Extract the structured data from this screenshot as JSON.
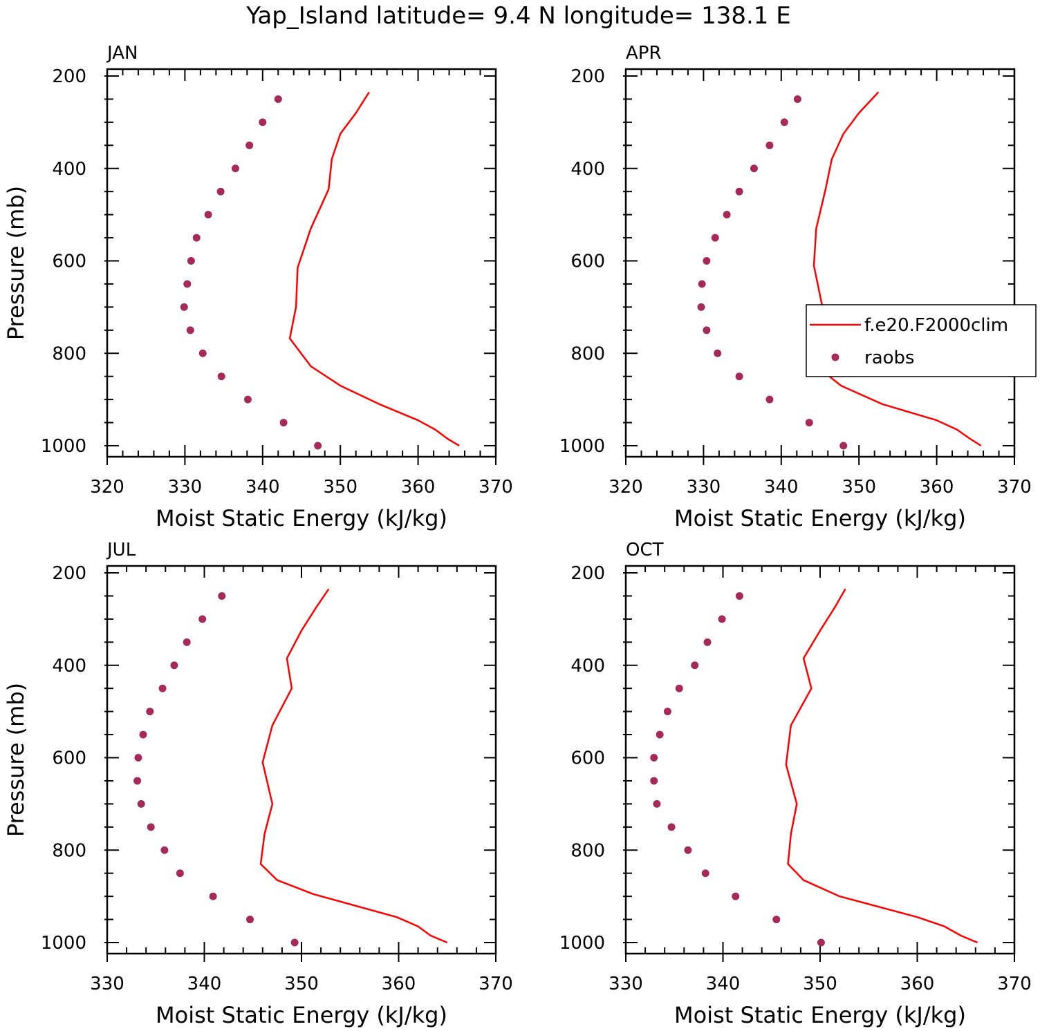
{
  "figure": {
    "title": "Yap_Island  latitude= 9.4 N longitude= 138.1 E"
  },
  "legend": {
    "model_label": "f.e20.F2000clim",
    "obs_label": "raobs"
  },
  "colors": {
    "model_line": "#ff0000",
    "obs_marker": "#a52a5a",
    "axes": "#000000"
  },
  "chart_data": [
    {
      "type": "line",
      "panel": "JAN",
      "title": "JAN",
      "xlabel": "Moist Static Energy (kJ/kg)",
      "ylabel": "Pressure (mb)",
      "xlim": [
        320,
        370
      ],
      "ylim": [
        1000,
        200
      ],
      "xticks": [
        320,
        330,
        340,
        350,
        360,
        370
      ],
      "yticks": [
        200,
        400,
        600,
        800,
        1000
      ],
      "xtick_labels": [
        "320",
        "330",
        "340",
        "350",
        "360",
        "370"
      ],
      "ytick_labels": [
        "200",
        "400",
        "600",
        "800",
        "1000"
      ],
      "series": [
        {
          "name": "f.e20.F2000clim",
          "kind": "line",
          "x": [
            365.3,
            363.8,
            362.2,
            360.0,
            355.0,
            350.0,
            346.2,
            343.5,
            344.3,
            344.5,
            346.2,
            348.5,
            348.9,
            350.0,
            352.0,
            353.7
          ],
          "y": [
            1000,
            985,
            965,
            945,
            910,
            870,
            828,
            768,
            700,
            615,
            530,
            445,
            380,
            325,
            280,
            235
          ]
        },
        {
          "name": "raobs",
          "kind": "markers",
          "x": [
            347.1,
            342.7,
            338.1,
            334.7,
            332.3,
            330.7,
            329.9,
            330.3,
            330.8,
            331.5,
            333.0,
            334.6,
            336.5,
            338.3,
            340.0,
            342.0
          ],
          "y": [
            1000,
            950,
            900,
            850,
            800,
            750,
            700,
            650,
            600,
            550,
            500,
            450,
            400,
            350,
            300,
            250
          ]
        }
      ]
    },
    {
      "type": "line",
      "panel": "APR",
      "title": "APR",
      "xlabel": "Moist Static Energy (kJ/kg)",
      "ylabel": "",
      "xlim": [
        320,
        370
      ],
      "ylim": [
        1000,
        200
      ],
      "xticks": [
        320,
        330,
        340,
        350,
        360,
        370
      ],
      "yticks": [
        200,
        400,
        600,
        800,
        1000
      ],
      "xtick_labels": [
        "320",
        "330",
        "340",
        "350",
        "360",
        "370"
      ],
      "ytick_labels": [
        "200",
        "400",
        "600",
        "800",
        "1000"
      ],
      "series": [
        {
          "name": "f.e20.F2000clim",
          "kind": "line",
          "x": [
            365.7,
            364.3,
            362.6,
            360.0,
            353.0,
            347.7,
            344.7,
            344.4,
            345.3,
            344.2,
            344.5,
            345.7,
            346.5,
            348.0,
            350.0,
            352.5
          ],
          "y": [
            1000,
            985,
            965,
            945,
            910,
            870,
            830,
            770,
            700,
            610,
            530,
            445,
            380,
            325,
            280,
            235
          ]
        },
        {
          "name": "raobs",
          "kind": "markers",
          "x": [
            348.0,
            343.6,
            338.5,
            334.6,
            331.8,
            330.4,
            329.7,
            329.8,
            330.4,
            331.5,
            333.0,
            334.6,
            336.5,
            338.5,
            340.4,
            342.1
          ],
          "y": [
            1000,
            950,
            900,
            850,
            800,
            750,
            700,
            650,
            600,
            550,
            500,
            450,
            400,
            350,
            300,
            250
          ]
        }
      ]
    },
    {
      "type": "line",
      "panel": "JUL",
      "title": "JUL",
      "xlabel": "Moist Static Energy (kJ/kg)",
      "ylabel": "Pressure (mb)",
      "xlim": [
        330,
        370
      ],
      "ylim": [
        1000,
        200
      ],
      "xticks": [
        330,
        340,
        350,
        360,
        370
      ],
      "yticks": [
        200,
        400,
        600,
        800,
        1000
      ],
      "xtick_labels": [
        "330",
        "340",
        "350",
        "360",
        "370"
      ],
      "ytick_labels": [
        "200",
        "400",
        "600",
        "800",
        "1000"
      ],
      "series": [
        {
          "name": "f.e20.F2000clim",
          "kind": "line",
          "x": [
            365.0,
            363.3,
            362.0,
            359.8,
            351.2,
            347.5,
            345.8,
            346.2,
            347.0,
            346.0,
            347.0,
            349.0,
            348.5,
            350.0,
            351.5,
            352.8
          ],
          "y": [
            1000,
            985,
            965,
            945,
            895,
            865,
            830,
            765,
            700,
            610,
            530,
            450,
            385,
            325,
            275,
            235
          ]
        },
        {
          "name": "raobs",
          "kind": "markers",
          "x": [
            349.3,
            344.7,
            340.9,
            337.5,
            335.9,
            334.5,
            333.5,
            333.1,
            333.2,
            333.7,
            334.4,
            335.7,
            336.9,
            338.2,
            339.8,
            341.8
          ],
          "y": [
            1000,
            950,
            900,
            850,
            800,
            750,
            700,
            650,
            600,
            550,
            500,
            450,
            400,
            350,
            300,
            250
          ]
        }
      ]
    },
    {
      "type": "line",
      "panel": "OCT",
      "title": "OCT",
      "xlabel": "Moist Static Energy (kJ/kg)",
      "ylabel": "",
      "xlim": [
        330,
        370
      ],
      "ylim": [
        1000,
        200
      ],
      "xticks": [
        330,
        340,
        350,
        360,
        370
      ],
      "yticks": [
        200,
        400,
        600,
        800,
        1000
      ],
      "xtick_labels": [
        "330",
        "340",
        "350",
        "360",
        "370"
      ],
      "ytick_labels": [
        "200",
        "400",
        "600",
        "800",
        "1000"
      ],
      "series": [
        {
          "name": "f.e20.F2000clim",
          "kind": "line",
          "x": [
            366.2,
            364.5,
            362.8,
            360.0,
            352.0,
            348.3,
            346.7,
            347.0,
            347.6,
            346.5,
            347.0,
            349.1,
            348.3,
            350.0,
            351.5,
            352.6
          ],
          "y": [
            1000,
            985,
            965,
            945,
            900,
            865,
            830,
            765,
            700,
            615,
            530,
            450,
            385,
            325,
            275,
            235
          ]
        },
        {
          "name": "raobs",
          "kind": "markers",
          "x": [
            350.1,
            345.5,
            341.3,
            338.2,
            336.4,
            334.7,
            333.2,
            332.9,
            332.9,
            333.5,
            334.3,
            335.5,
            337.1,
            338.4,
            339.9,
            341.7
          ],
          "y": [
            1000,
            950,
            900,
            850,
            800,
            750,
            700,
            650,
            600,
            550,
            500,
            450,
            400,
            350,
            300,
            250
          ]
        }
      ]
    }
  ]
}
